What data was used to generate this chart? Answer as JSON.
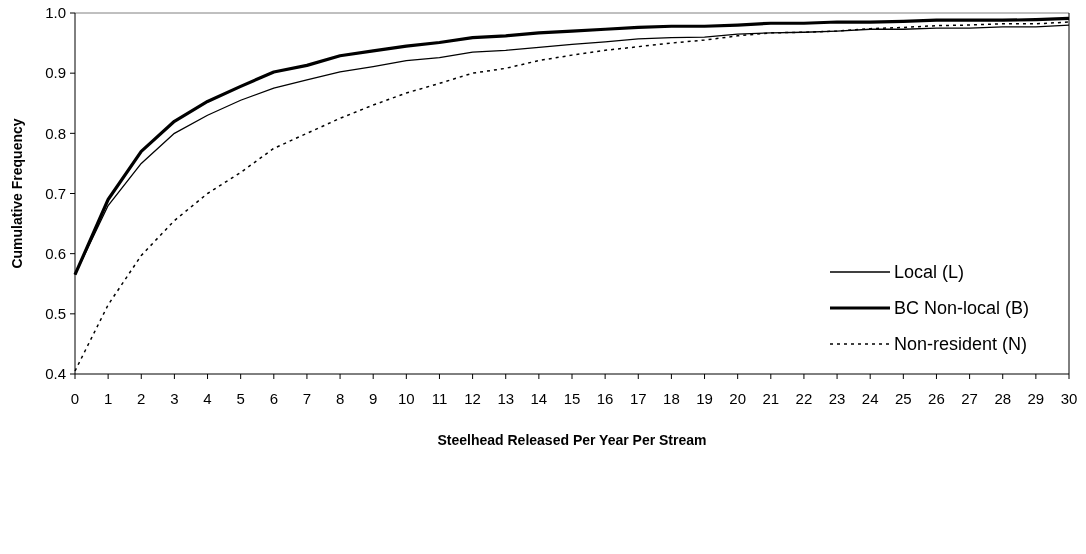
{
  "chart_data": {
    "type": "line",
    "xlabel": "Steelhead Released Per Year Per Stream",
    "ylabel": "Cumulative Frequency",
    "x": [
      0,
      1,
      2,
      3,
      4,
      5,
      6,
      7,
      8,
      9,
      10,
      11,
      12,
      13,
      14,
      15,
      16,
      17,
      18,
      19,
      20,
      21,
      22,
      23,
      24,
      25,
      26,
      27,
      28,
      29,
      30
    ],
    "xlim": [
      0,
      30
    ],
    "xticks": [
      0,
      1,
      2,
      3,
      4,
      5,
      6,
      7,
      8,
      9,
      10,
      11,
      12,
      13,
      14,
      15,
      16,
      17,
      18,
      19,
      20,
      21,
      22,
      23,
      24,
      25,
      26,
      27,
      28,
      29,
      30
    ],
    "ylim": [
      0.4,
      1.0
    ],
    "yticks": [
      {
        "value": 0.4,
        "label": "0.4"
      },
      {
        "value": 0.5,
        "label": "0.5"
      },
      {
        "value": 0.6,
        "label": "0.6"
      },
      {
        "value": 0.7,
        "label": "0.7"
      },
      {
        "value": 0.8,
        "label": "0.8"
      },
      {
        "value": 0.9,
        "label": "0.9"
      },
      {
        "value": 1.0,
        "label": "1.0"
      }
    ],
    "legend": "bottom right",
    "grid": false,
    "marker": "none",
    "series": [
      {
        "name": "Local (L)",
        "color": "#000000",
        "line_style": "solid",
        "values": [
          0.565,
          0.68,
          0.75,
          0.8,
          0.83,
          0.855,
          0.875,
          0.889,
          0.902,
          0.911,
          0.921,
          0.926,
          0.935,
          0.938,
          0.943,
          0.948,
          0.952,
          0.957,
          0.959,
          0.96,
          0.965,
          0.967,
          0.968,
          0.97,
          0.973,
          0.973,
          0.975,
          0.975,
          0.977,
          0.977,
          0.98
        ]
      },
      {
        "name": "BC Non-local (B)",
        "color": "#000000",
        "line_style": "solid",
        "values": [
          0.565,
          0.69,
          0.77,
          0.82,
          0.853,
          0.878,
          0.902,
          0.913,
          0.929,
          0.937,
          0.945,
          0.951,
          0.959,
          0.962,
          0.967,
          0.97,
          0.973,
          0.976,
          0.978,
          0.978,
          0.98,
          0.983,
          0.983,
          0.985,
          0.985,
          0.986,
          0.988,
          0.988,
          0.988,
          0.989,
          0.991
        ]
      },
      {
        "name": "Non-resident (N)",
        "color": "#000000",
        "line_style": "dotted",
        "values": [
          0.405,
          0.515,
          0.597,
          0.655,
          0.7,
          0.735,
          0.775,
          0.8,
          0.825,
          0.847,
          0.867,
          0.883,
          0.9,
          0.908,
          0.921,
          0.93,
          0.938,
          0.944,
          0.95,
          0.955,
          0.962,
          0.967,
          0.968,
          0.97,
          0.974,
          0.976,
          0.979,
          0.98,
          0.982,
          0.982,
          0.985
        ]
      }
    ]
  }
}
